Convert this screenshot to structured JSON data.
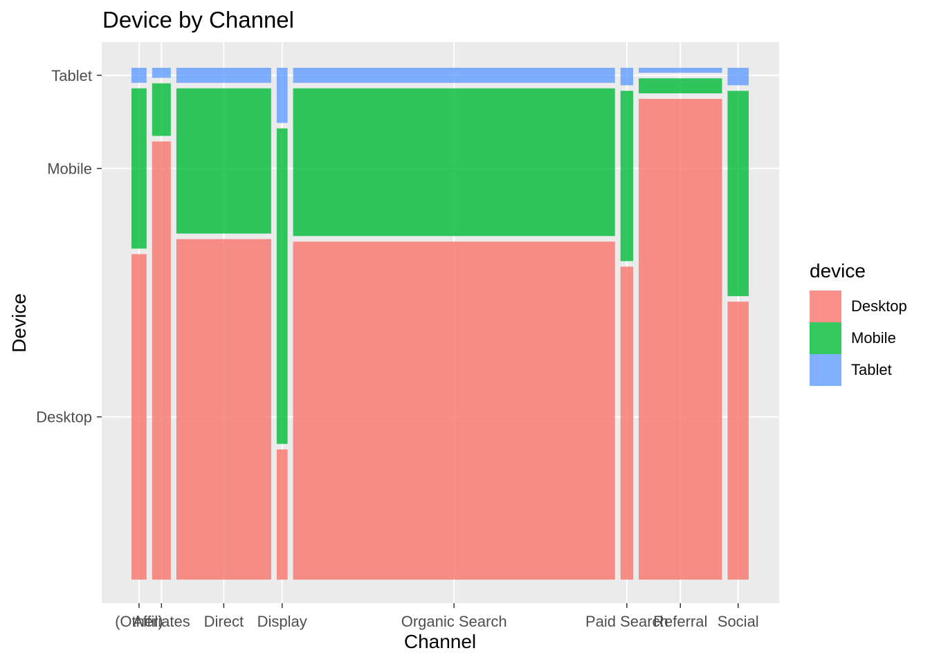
{
  "title": "Device by Channel",
  "chart_data": {
    "type": "mosaic",
    "title": "Device by Channel",
    "xlabel": "Channel",
    "ylabel": "Device",
    "categories": [
      "(Other)",
      "Affiliates",
      "Direct",
      "Display",
      "Organic Search",
      "Paid Search",
      "Referral",
      "Social"
    ],
    "column_widths": [
      0.025,
      0.031,
      0.157,
      0.018,
      0.533,
      0.021,
      0.138,
      0.035
    ],
    "series": [
      {
        "name": "Desktop",
        "color": "#F8766D",
        "values": [
          0.65,
          0.875,
          0.68,
          0.26,
          0.675,
          0.625,
          0.96,
          0.555
        ]
      },
      {
        "name": "Mobile",
        "color": "#00BA38",
        "values": [
          0.32,
          0.105,
          0.29,
          0.63,
          0.295,
          0.34,
          0.03,
          0.41
        ]
      },
      {
        "name": "Tablet",
        "color": "#619CFF",
        "values": [
          0.03,
          0.02,
          0.03,
          0.11,
          0.03,
          0.035,
          0.01,
          0.035
        ]
      }
    ],
    "y_tick_labels": [
      "Desktop",
      "Mobile",
      "Tablet"
    ],
    "grid": true,
    "legend_title": "device",
    "legend_position": "right"
  }
}
